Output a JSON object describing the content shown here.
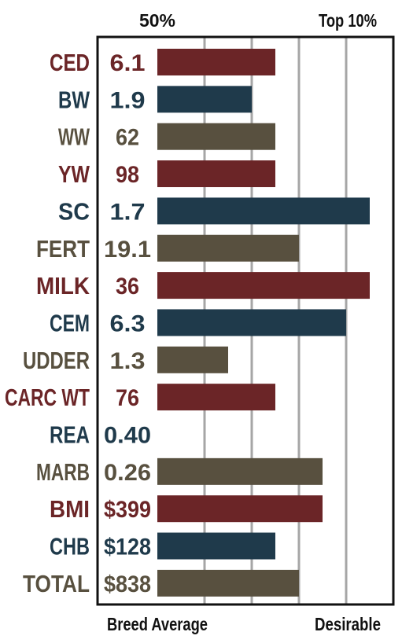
{
  "chart_data": {
    "type": "bar",
    "orientation": "horizontal",
    "top_labels": {
      "left": "50%",
      "right": "Top 10%"
    },
    "bottom_labels": {
      "left": "Breed Average",
      "right": "Desirable"
    },
    "colors": {
      "red": "#6b2527",
      "blue": "#1f3a4b",
      "gray": "#58503f",
      "grid": "#a6a6a6",
      "frame": "#111111"
    },
    "scale": {
      "min": 0,
      "max": 5,
      "grid": [
        1,
        2,
        3,
        4
      ]
    },
    "rows": [
      {
        "trait": "CED",
        "epd": "6.1",
        "bar": 2.5,
        "color": "red"
      },
      {
        "trait": "BW",
        "epd": "1.9",
        "bar": 2.0,
        "color": "blue"
      },
      {
        "trait": "WW",
        "epd": "62",
        "bar": 2.5,
        "color": "gray"
      },
      {
        "trait": "YW",
        "epd": "98",
        "bar": 2.5,
        "color": "red"
      },
      {
        "trait": "SC",
        "epd": "1.7",
        "bar": 4.5,
        "color": "blue"
      },
      {
        "trait": "FERT",
        "epd": "19.1",
        "bar": 3.0,
        "color": "gray"
      },
      {
        "trait": "MILK",
        "epd": "36",
        "bar": 4.5,
        "color": "red"
      },
      {
        "trait": "CEM",
        "epd": "6.3",
        "bar": 4.0,
        "color": "blue"
      },
      {
        "trait": "UDDER",
        "epd": "1.3",
        "bar": 1.5,
        "color": "gray"
      },
      {
        "trait": "CARC WT",
        "epd": "76",
        "bar": 2.5,
        "color": "red"
      },
      {
        "trait": "REA",
        "epd": "0.40",
        "bar": 0,
        "color": "blue"
      },
      {
        "trait": "MARB",
        "epd": "0.26",
        "bar": 3.5,
        "color": "gray"
      },
      {
        "trait": "BMI",
        "epd": "$399",
        "bar": 3.5,
        "color": "red"
      },
      {
        "trait": "CHB",
        "epd": "$128",
        "bar": 2.5,
        "color": "blue"
      },
      {
        "trait": "TOTAL",
        "epd": "$838",
        "bar": 3.0,
        "color": "gray"
      }
    ]
  }
}
